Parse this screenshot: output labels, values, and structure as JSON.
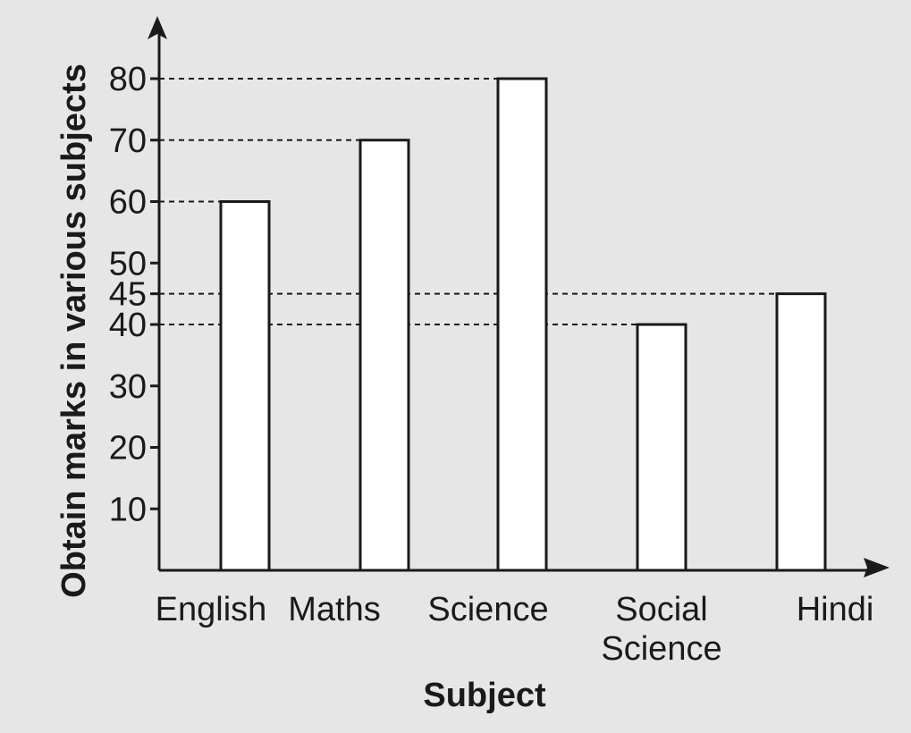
{
  "chart_data": {
    "type": "bar",
    "categories": [
      "English",
      "Maths",
      "Science",
      "Social Science",
      "Hindi"
    ],
    "category_lines": [
      [
        "English"
      ],
      [
        "Maths"
      ],
      [
        "Science"
      ],
      [
        "Social",
        "Science"
      ],
      [
        "Hindi"
      ]
    ],
    "values": [
      60,
      70,
      80,
      40,
      45
    ],
    "xlabel": "Subject",
    "ylabel": "Obtain marks in various subjects",
    "yticks": [
      10,
      20,
      30,
      40,
      45,
      50,
      60,
      70,
      80
    ],
    "ylim": [
      0,
      80
    ],
    "grid": false,
    "reference_lines": true,
    "bar_fill": "#ffffff",
    "ink_color": "#1a1a1a",
    "background": "#e6e6e6"
  }
}
